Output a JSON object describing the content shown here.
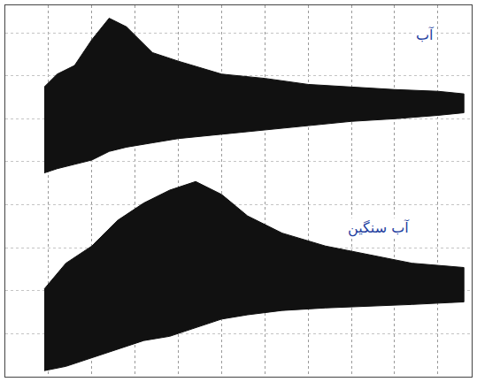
{
  "chart_data": {
    "type": "area",
    "series": [
      {
        "name": "آب",
        "color": "#111111",
        "x": [
          45,
          60,
          80,
          100,
          120,
          140,
          170,
          200,
          250,
          300,
          350,
          400,
          450,
          500,
          530
        ],
        "upper": [
          337,
          352,
          362,
          392,
          417,
          407,
          377,
          367,
          352,
          347,
          340,
          337,
          334,
          332,
          329
        ],
        "lower": [
          237,
          242,
          247,
          252,
          262,
          267,
          272,
          277,
          282,
          287,
          292,
          297,
          300,
          304,
          307
        ]
      },
      {
        "name": "آب سنگین",
        "color": "#111111",
        "x": [
          45,
          70,
          100,
          130,
          160,
          190,
          220,
          250,
          280,
          320,
          370,
          420,
          470,
          530
        ],
        "upper": [
          102,
          132,
          152,
          182,
          202,
          217,
          227,
          212,
          187,
          167,
          152,
          142,
          132,
          127
        ],
        "lower": [
          7,
          12,
          22,
          32,
          42,
          47,
          57,
          67,
          72,
          77,
          80,
          82,
          84,
          87
        ]
      }
    ],
    "xlim": [
      0,
      539
    ],
    "ylim": [
      0,
      432
    ],
    "xticks": [
      0,
      50,
      100,
      150,
      200,
      250,
      300,
      350,
      400,
      450,
      500
    ],
    "yticks": [
      0,
      50,
      100,
      150,
      200,
      250,
      300,
      350,
      400
    ],
    "grid": true,
    "tick_labels": false
  }
}
